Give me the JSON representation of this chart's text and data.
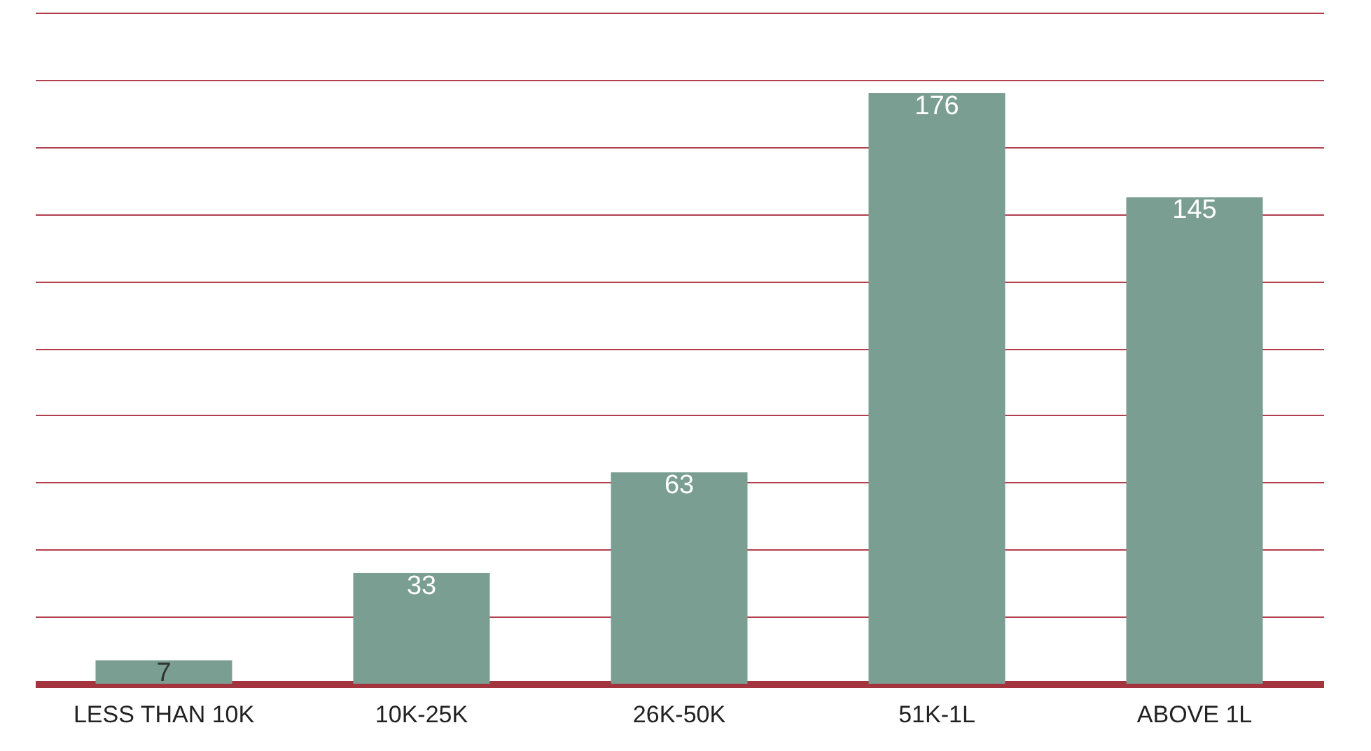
{
  "chart_data": {
    "type": "bar",
    "categories": [
      "LESS THAN 10K",
      "10K-25K",
      "26K-50K",
      "51K-1L",
      "ABOVE 1L"
    ],
    "values": [
      7,
      33,
      63,
      176,
      145
    ],
    "color": "#7a9e91",
    "data_labels": true,
    "grid": "y",
    "tick_labels": "x",
    "ylim": [
      0,
      200
    ],
    "yticks": [
      {
        "value": 20,
        "label": null
      },
      {
        "value": 40,
        "label": null
      },
      {
        "value": 60,
        "label": null
      },
      {
        "value": 80,
        "label": null
      },
      {
        "value": 100,
        "label": null
      },
      {
        "value": 120,
        "label": null
      },
      {
        "value": 140,
        "label": null
      },
      {
        "value": 160,
        "label": null
      },
      {
        "value": 180,
        "label": null
      },
      {
        "value": 200,
        "label": null
      }
    ]
  }
}
